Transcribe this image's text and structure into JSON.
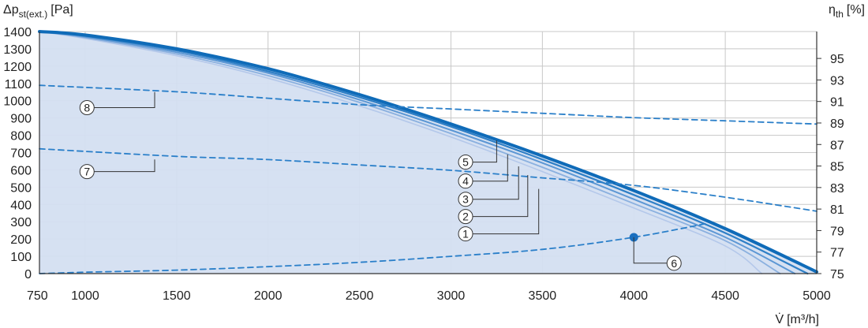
{
  "chart_data": {
    "type": "line",
    "title": "",
    "ylabel_main": "Δp",
    "ylabel_sub": "st(ext.)",
    "ylabel_unit": "[Pa]",
    "y2label_main": "η",
    "y2label_sub": "th",
    "y2label_unit": "[%]",
    "xlabel_main": "V̇",
    "xlabel_unit": "[m³/h]",
    "xlim": [
      750,
      5000
    ],
    "ylim": [
      0,
      1400
    ],
    "y2lim": [
      75,
      97.5
    ],
    "x_ticks": [
      750,
      1000,
      1500,
      2000,
      2500,
      3000,
      3500,
      4000,
      4500,
      5000
    ],
    "x_tick_labels": [
      "750",
      "1000",
      "1500",
      "2000",
      "2500",
      "3000",
      "3500",
      "4000",
      "4500",
      "5000"
    ],
    "y_ticks": [
      0,
      100,
      200,
      300,
      400,
      500,
      600,
      700,
      800,
      900,
      1000,
      1100,
      1200,
      1300,
      1400
    ],
    "y_tick_labels": [
      "0",
      "100",
      "200",
      "300",
      "400",
      "500",
      "600",
      "700",
      "800",
      "900",
      "1000",
      "1100",
      "1200",
      "1300",
      "1400"
    ],
    "y2_ticks": [
      75,
      77,
      79,
      81,
      83,
      85,
      87,
      89,
      91,
      93,
      95
    ],
    "y2_tick_labels": [
      "75",
      "77",
      "79",
      "81",
      "83",
      "85",
      "87",
      "89",
      "91",
      "93",
      "95"
    ],
    "grid": true,
    "colors": {
      "fill": "#d4dff1",
      "grid": "#c8c8c8",
      "dashed": "#2a7fc9",
      "point": "#1a6fbf"
    },
    "series": [
      {
        "label": "1",
        "axis": "left",
        "style": "solid",
        "color": "#b4c8ea",
        "width": 1.6,
        "points": [
          [
            750,
            1400
          ],
          [
            1000,
            1360
          ],
          [
            1500,
            1260
          ],
          [
            2000,
            1130
          ],
          [
            2500,
            970
          ],
          [
            3000,
            790
          ],
          [
            3500,
            590
          ],
          [
            4000,
            380
          ],
          [
            4500,
            160
          ],
          [
            4700,
            0
          ]
        ]
      },
      {
        "label": "2",
        "axis": "left",
        "style": "solid",
        "color": "#8ab0df",
        "width": 1.8,
        "points": [
          [
            750,
            1400
          ],
          [
            1000,
            1365
          ],
          [
            1500,
            1270
          ],
          [
            2000,
            1145
          ],
          [
            2500,
            990
          ],
          [
            3000,
            810
          ],
          [
            3500,
            615
          ],
          [
            4000,
            405
          ],
          [
            4500,
            190
          ],
          [
            4800,
            0
          ]
        ]
      },
      {
        "label": "3",
        "axis": "left",
        "style": "solid",
        "color": "#5c97d4",
        "width": 2,
        "points": [
          [
            750,
            1400
          ],
          [
            1000,
            1370
          ],
          [
            1500,
            1280
          ],
          [
            2000,
            1160
          ],
          [
            2500,
            1005
          ],
          [
            3000,
            830
          ],
          [
            3500,
            640
          ],
          [
            4000,
            430
          ],
          [
            4500,
            210
          ],
          [
            4880,
            0
          ]
        ]
      },
      {
        "label": "4",
        "axis": "left",
        "style": "solid",
        "color": "#2e7fc6",
        "width": 2.2,
        "points": [
          [
            750,
            1400
          ],
          [
            1000,
            1375
          ],
          [
            1500,
            1290
          ],
          [
            2000,
            1170
          ],
          [
            2500,
            1020
          ],
          [
            3000,
            850
          ],
          [
            3500,
            660
          ],
          [
            4000,
            455
          ],
          [
            4500,
            235
          ],
          [
            4950,
            0
          ]
        ]
      },
      {
        "label": "5",
        "axis": "left",
        "style": "solid",
        "color": "#0f6bb8",
        "width": 4,
        "points": [
          [
            750,
            1400
          ],
          [
            1000,
            1380
          ],
          [
            1500,
            1300
          ],
          [
            2000,
            1185
          ],
          [
            2500,
            1035
          ],
          [
            3000,
            865
          ],
          [
            3500,
            680
          ],
          [
            4000,
            480
          ],
          [
            4500,
            260
          ],
          [
            5000,
            10
          ]
        ]
      },
      {
        "label": "6",
        "axis": "left",
        "style": "dashed",
        "color": "#2a7fc9",
        "width": 1.8,
        "points": [
          [
            750,
            0
          ],
          [
            1000,
            8
          ],
          [
            1500,
            20
          ],
          [
            2000,
            40
          ],
          [
            2500,
            65
          ],
          [
            3000,
            100
          ],
          [
            3500,
            140
          ],
          [
            4000,
            210
          ],
          [
            4400,
            290
          ]
        ]
      },
      {
        "label": "7",
        "axis": "right",
        "style": "dashed",
        "color": "#2a7fc9",
        "width": 1.8,
        "points": [
          [
            750,
            86.6
          ],
          [
            1500,
            85.9
          ],
          [
            2000,
            85.6
          ],
          [
            2500,
            85.1
          ],
          [
            3000,
            84.6
          ],
          [
            3500,
            83.9
          ],
          [
            4000,
            83.2
          ],
          [
            4500,
            82.1
          ],
          [
            5000,
            80.8
          ]
        ]
      },
      {
        "label": "8",
        "axis": "right",
        "style": "dashed",
        "color": "#2a7fc9",
        "width": 1.8,
        "points": [
          [
            750,
            92.5
          ],
          [
            1500,
            91.9
          ],
          [
            2000,
            91.3
          ],
          [
            2500,
            90.7
          ],
          [
            3000,
            90.3
          ],
          [
            3500,
            89.9
          ],
          [
            4000,
            89.5
          ],
          [
            4500,
            89.2
          ],
          [
            5000,
            88.9
          ]
        ]
      }
    ],
    "operating_point": {
      "x": 4000,
      "y": 210
    },
    "annotations": [
      {
        "label": "1",
        "anchor": [
          3480,
          490
        ],
        "text_x": 3080,
        "text_y": 230
      },
      {
        "label": "2",
        "anchor": [
          3420,
          570
        ],
        "text_x": 3080,
        "text_y": 330
      },
      {
        "label": "3",
        "anchor": [
          3370,
          620
        ],
        "text_x": 3080,
        "text_y": 430
      },
      {
        "label": "4",
        "anchor": [
          3310,
          690
        ],
        "text_x": 3080,
        "text_y": 535
      },
      {
        "label": "5",
        "anchor": [
          3250,
          770
        ],
        "text_x": 3080,
        "text_y": 645
      },
      {
        "label": "6",
        "anchor": [
          4000,
          210
        ],
        "text_x": 4220,
        "text_y": 60
      },
      {
        "label": "7",
        "anchor": [
          1380,
          660
        ],
        "text_x": 1010,
        "text_y": 590
      },
      {
        "label": "8",
        "anchor": [
          1380,
          1050
        ],
        "text_x": 1010,
        "text_y": 960
      }
    ]
  }
}
